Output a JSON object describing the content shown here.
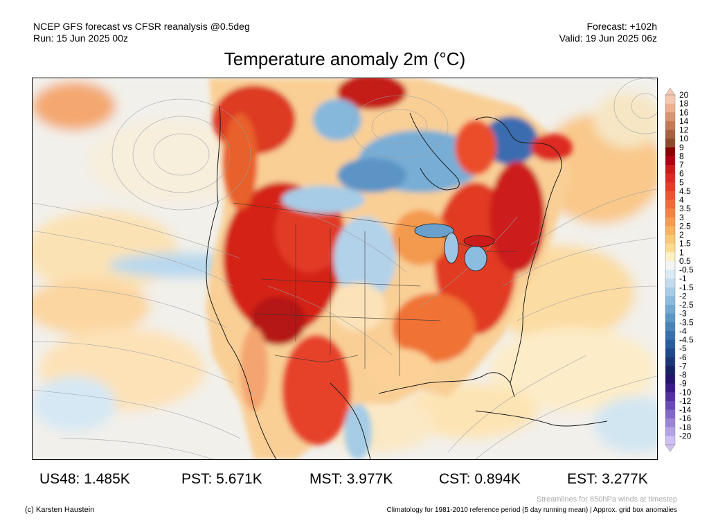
{
  "header": {
    "line1": "NCEP GFS forecast vs CFSR reanalysis @0.5deg",
    "line2": "Run: 15 Jun 2025 00z",
    "forecast": "Forecast: +102h",
    "valid": "Valid: 19 Jun 2025 06z"
  },
  "title": "Temperature anomaly 2m (°C)",
  "colorbar": {
    "labels": [
      "20",
      "18",
      "16",
      "14",
      "12",
      "10",
      "9",
      "8",
      "7",
      "6",
      "5",
      "4.5",
      "4",
      "3.5",
      "3",
      "2.5",
      "2",
      "1.5",
      "1",
      "0.5",
      "-0.5",
      "-1",
      "-1.5",
      "-2",
      "-2.5",
      "-3",
      "-3.5",
      "-4",
      "-4.5",
      "-5",
      "-6",
      "-7",
      "-8",
      "-9",
      "-10",
      "-12",
      "-14",
      "-16",
      "-18",
      "-20"
    ],
    "colors": [
      "#f6c8b0",
      "#eeb090",
      "#d99370",
      "#c47a55",
      "#a8623f",
      "#8e4a2b",
      "#8b0000",
      "#b00014",
      "#cc1a1a",
      "#dd2a22",
      "#e63c26",
      "#ec5530",
      "#f06b38",
      "#f48244",
      "#f89a52",
      "#fab262",
      "#fcc876",
      "#fddc92",
      "#fff0c4",
      "#f4f4f4",
      "#dceaf4",
      "#c2dcee",
      "#a6cce6",
      "#8cbadc",
      "#72a8d2",
      "#5a96c6",
      "#4684ba",
      "#3670ae",
      "#285c9e",
      "#20488c",
      "#1c3478",
      "#1a2266",
      "#24146e",
      "#3a1a86",
      "#5230a0",
      "#6a4ab6",
      "#8266c8",
      "#9a84d8",
      "#b4a2e6",
      "#cec0f2"
    ]
  },
  "stats": [
    {
      "label": "US48: 1.485K"
    },
    {
      "label": "PST: 5.671K"
    },
    {
      "label": "MST: 3.977K"
    },
    {
      "label": "CST: 0.894K"
    },
    {
      "label": "EST: 3.277K"
    }
  ],
  "footer": {
    "streamlines": "Streamlines for 850hPa winds at timestep",
    "copyright": "(c) Karsten Haustein",
    "climatology": "Climatology for 1981-2010 reference period (5 day running mean) | Approx. grid box anomalies"
  }
}
